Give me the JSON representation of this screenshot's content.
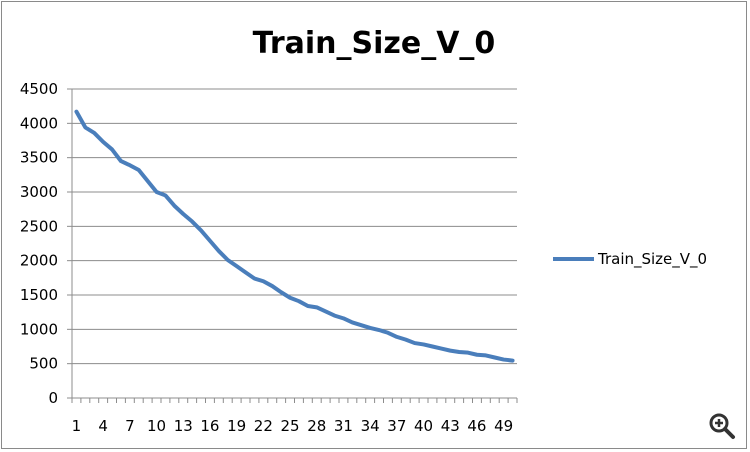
{
  "chart_data": {
    "type": "line",
    "title": "Train_Size_V_0",
    "xlabel": "",
    "ylabel": "",
    "ylim": [
      0,
      4500
    ],
    "yticks": [
      0,
      500,
      1000,
      1500,
      2000,
      2500,
      3000,
      3500,
      4000,
      4500
    ],
    "xticks": [
      1,
      4,
      7,
      10,
      13,
      16,
      19,
      22,
      25,
      28,
      31,
      34,
      37,
      40,
      43,
      46,
      49
    ],
    "grid": true,
    "legend_position": "right",
    "series": [
      {
        "name": "Train_Size_V_0",
        "color": "#4a7ebb",
        "x": [
          1,
          2,
          3,
          4,
          5,
          6,
          7,
          8,
          9,
          10,
          11,
          12,
          13,
          14,
          15,
          16,
          17,
          18,
          19,
          20,
          21,
          22,
          23,
          24,
          25,
          26,
          27,
          28,
          29,
          30,
          31,
          32,
          33,
          34,
          35,
          36,
          37,
          38,
          39,
          40,
          41,
          42,
          43,
          44,
          45,
          46,
          47,
          48,
          49,
          50
        ],
        "values": [
          4170,
          3940,
          3860,
          3730,
          3620,
          3450,
          3390,
          3320,
          3160,
          3000,
          2950,
          2800,
          2680,
          2570,
          2440,
          2290,
          2140,
          2010,
          1920,
          1830,
          1740,
          1700,
          1630,
          1540,
          1460,
          1410,
          1340,
          1320,
          1260,
          1200,
          1160,
          1100,
          1060,
          1020,
          990,
          950,
          890,
          850,
          800,
          780,
          750,
          720,
          690,
          670,
          660,
          630,
          620,
          590,
          560,
          545
        ]
      }
    ]
  },
  "ui": {
    "zoom_icon": "magnifier-plus-icon"
  }
}
